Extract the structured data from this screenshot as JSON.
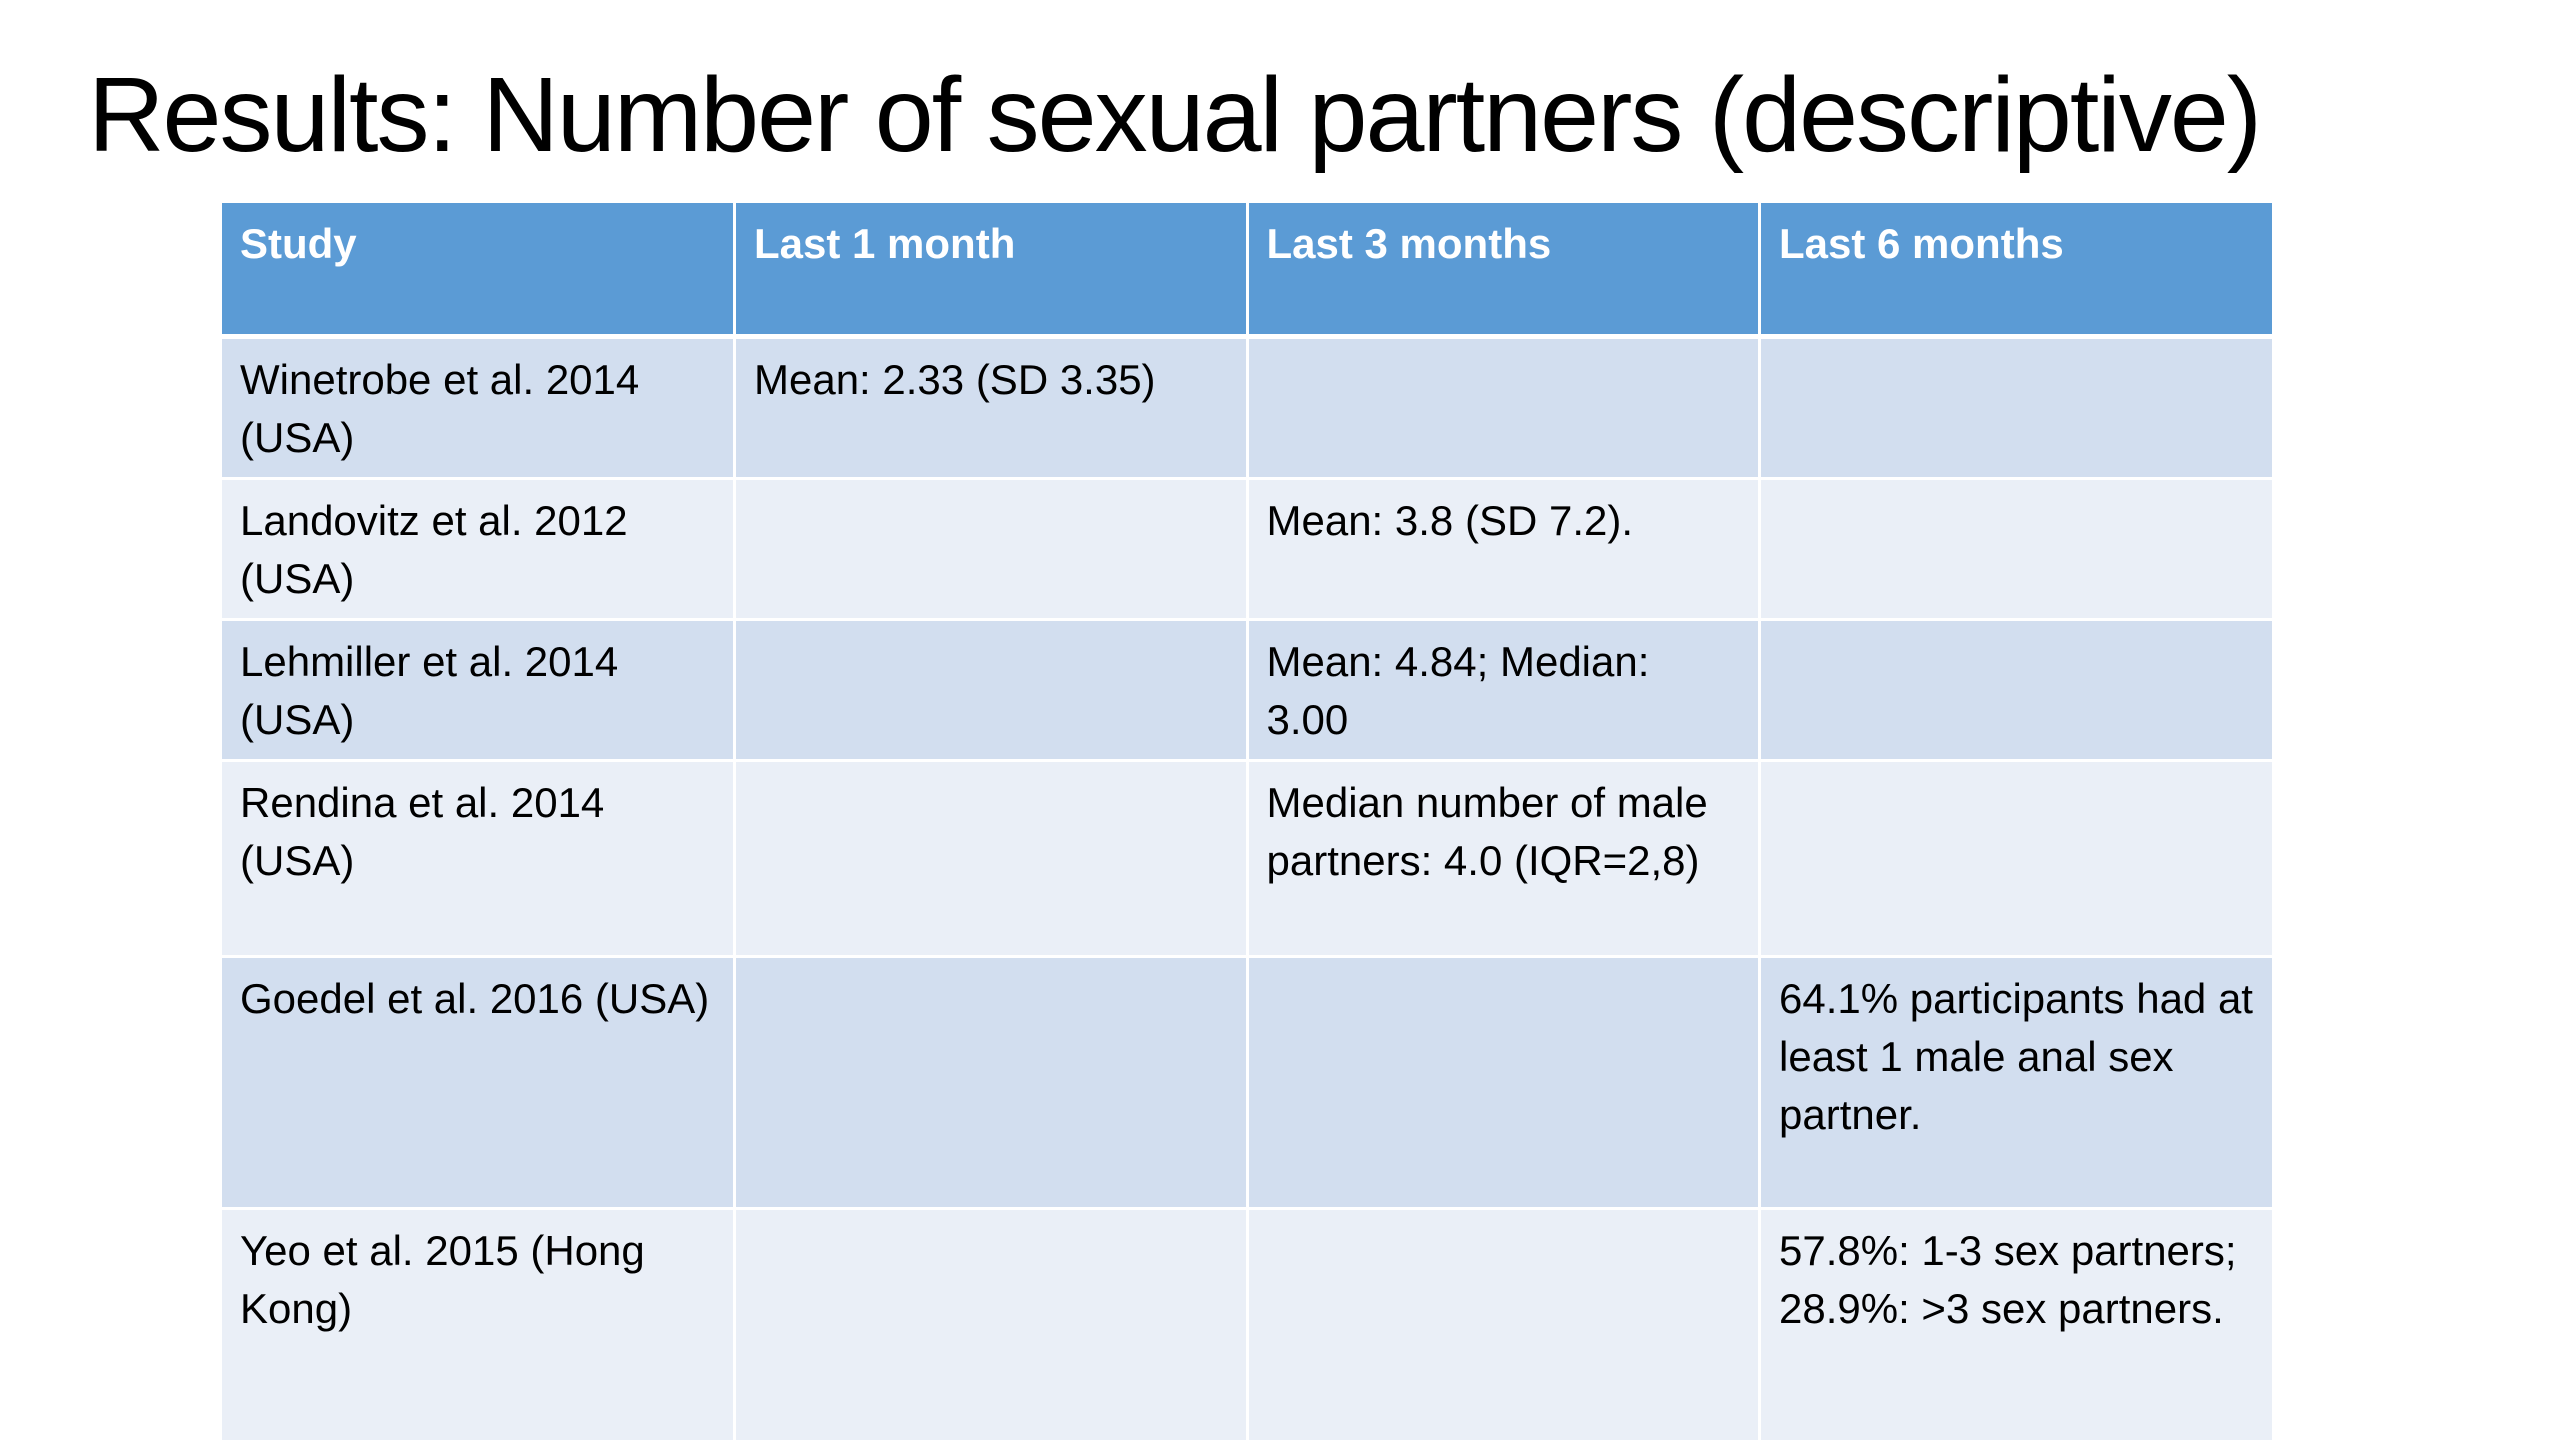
{
  "slide": {
    "title": "Results: Number of sexual partners (descriptive)"
  },
  "colors": {
    "header_background": "#5b9bd5",
    "header_text": "#ffffff",
    "row_band_dark": "#d2deef",
    "row_band_light": "#eaeff7"
  },
  "table": {
    "headers": [
      "Study",
      "Last 1 month",
      "Last 3 months",
      "Last 6 months"
    ],
    "rows": [
      [
        "Winetrobe et al. 2014 (USA)",
        "Mean: 2.33 (SD 3.35)",
        "",
        ""
      ],
      [
        "Landovitz et al. 2012 (USA)",
        "",
        "Mean: 3.8 (SD 7.2).",
        ""
      ],
      [
        "Lehmiller et al. 2014 (USA)",
        "",
        "Mean: 4.84; Median: 3.00",
        ""
      ],
      [
        "Rendina et al. 2014 (USA)",
        "",
        "Median number of male partners: 4.0 (IQR=2,8)",
        ""
      ],
      [
        "Goedel et al. 2016 (USA)",
        "",
        "",
        "64.1% participants had at least 1 male anal sex partner."
      ],
      [
        "Yeo et al. 2015 (Hong Kong)",
        "",
        "",
        "57.8%: 1-3 sex partners; 28.9%: >3 sex partners."
      ]
    ]
  }
}
